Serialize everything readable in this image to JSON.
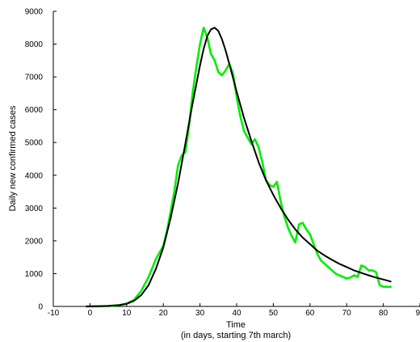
{
  "chart_data": {
    "type": "line",
    "xlabel": "Time",
    "xlabel_sub": "(in days, starting 7th march)",
    "ylabel": "Daily new confirmed cases",
    "xlim": [
      -10,
      90
    ],
    "ylim": [
      0,
      9000
    ],
    "xticks": [
      -10,
      0,
      10,
      20,
      30,
      40,
      50,
      60,
      70,
      80,
      90
    ],
    "yticks": [
      0,
      1000,
      2000,
      3000,
      4000,
      5000,
      6000,
      7000,
      8000,
      9000
    ],
    "grid": false,
    "legend": "none",
    "series": [
      {
        "color": "#00ee00",
        "x": [
          -1,
          2,
          5,
          8,
          10,
          12,
          14,
          16,
          18,
          19,
          20,
          21,
          22,
          23,
          24,
          25,
          26,
          27,
          28,
          29,
          30,
          31,
          32,
          33,
          34,
          35,
          36,
          37,
          38,
          39,
          40,
          41,
          42,
          43,
          44,
          45,
          46,
          47,
          48,
          49,
          50,
          51,
          52,
          53,
          54,
          55,
          56,
          57,
          58,
          59,
          60,
          61,
          62,
          63,
          64,
          65,
          66,
          67,
          68,
          69,
          70,
          71,
          72,
          73,
          74,
          75,
          76,
          77,
          78,
          79,
          80,
          81,
          82
        ],
        "values": [
          0,
          5,
          10,
          40,
          90,
          200,
          480,
          900,
          1450,
          1650,
          1850,
          2300,
          2900,
          3500,
          4300,
          4600,
          4700,
          5500,
          6500,
          7300,
          8000,
          8500,
          8200,
          7700,
          7500,
          7150,
          7050,
          7200,
          7400,
          7100,
          6400,
          5800,
          5350,
          5150,
          4950,
          5100,
          4850,
          4400,
          3850,
          3700,
          3650,
          3800,
          3200,
          2750,
          2400,
          2150,
          1950,
          2500,
          2550,
          2350,
          2200,
          1900,
          1600,
          1400,
          1300,
          1200,
          1100,
          1000,
          950,
          900,
          850,
          880,
          950,
          900,
          1250,
          1200,
          1100,
          1100,
          1050,
          650,
          600,
          600,
          600
        ]
      },
      {
        "color": "#000000",
        "x": [
          -1,
          2,
          5,
          8,
          10,
          12,
          14,
          16,
          18,
          20,
          22,
          24,
          26,
          28,
          30,
          31,
          32,
          33,
          34,
          35,
          36,
          37,
          38,
          40,
          42,
          44,
          46,
          48,
          50,
          52,
          54,
          56,
          58,
          60,
          62,
          64,
          66,
          68,
          70,
          72,
          74,
          76,
          78,
          80,
          82
        ],
        "values": [
          0,
          5,
          15,
          40,
          80,
          170,
          350,
          650,
          1150,
          1800,
          2700,
          3750,
          4950,
          6200,
          7350,
          7850,
          8250,
          8450,
          8500,
          8400,
          8150,
          7800,
          7400,
          6550,
          5750,
          5050,
          4400,
          3850,
          3400,
          3000,
          2650,
          2350,
          2100,
          1900,
          1700,
          1550,
          1420,
          1300,
          1200,
          1100,
          1020,
          950,
          880,
          820,
          760
        ]
      }
    ]
  }
}
